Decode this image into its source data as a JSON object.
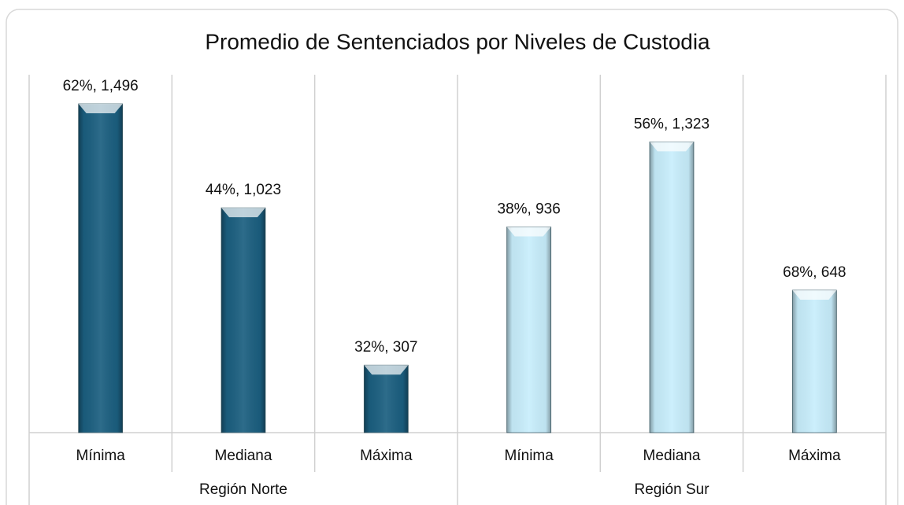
{
  "chart_data": {
    "type": "bar",
    "title": "Promedio de Sentenciados por Niveles de Custodia",
    "groups": [
      {
        "label": "Región Norte",
        "color": "#1b5f80",
        "categories": [
          "Mínima",
          "Mediana",
          "Máxima"
        ],
        "values": [
          1496,
          1023,
          307
        ],
        "value_labels": [
          "62%, 1,496",
          "44%, 1,023",
          "32%, 307"
        ]
      },
      {
        "label": "Región Sur",
        "color": "#c8eefc",
        "categories": [
          "Mínima",
          "Mediana",
          "Máxima"
        ],
        "values": [
          936,
          1323,
          648
        ],
        "value_labels": [
          "38%, 936",
          "56%, 1,323",
          "68%, 648"
        ]
      }
    ]
  }
}
